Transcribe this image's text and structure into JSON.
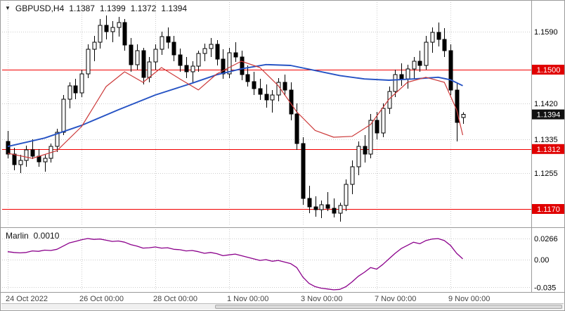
{
  "header": {
    "symbol": "GBPUSD,H4",
    "open": "1.1387",
    "high": "1.1399",
    "low": "1.1372",
    "close": "1.1394"
  },
  "indicator_header": {
    "name": "Marlin",
    "value": "0.0010"
  },
  "colors": {
    "bg": "#ffffff",
    "grid": "#cccccc",
    "candle": "#000000",
    "bull_fill": "#ffffff",
    "bear_fill": "#000000",
    "ma_slow": "#2653c4",
    "ma_fast": "#cc3a3a",
    "level_line": "#f20000",
    "level_badge": "#e00000",
    "price_badge": "#111111",
    "marlin": "#8b008b",
    "date_text": "#444444",
    "separator": "#9a9a9a"
  },
  "chart_data": {
    "type": "candlestick",
    "symbol": "GBPUSD",
    "timeframe": "H4",
    "title": "GBPUSD,H4 1.1387 1.1399 1.1372 1.1394",
    "y_axis": {
      "range": [
        1.113,
        1.166
      ],
      "plain_labels": [
        {
          "price": 1.159,
          "text": "1.1590"
        },
        {
          "price": 1.142,
          "text": "1.1420"
        },
        {
          "price": 1.1335,
          "text": "1.1335"
        },
        {
          "price": 1.1255,
          "text": "1.1255"
        }
      ],
      "level_labels": [
        {
          "price": 1.15,
          "text": "1.1500"
        },
        {
          "price": 1.1312,
          "text": "1.1312"
        },
        {
          "price": 1.117,
          "text": "1.1170"
        }
      ],
      "price_label": {
        "price": 1.1394,
        "text": "1.1394"
      }
    },
    "levels": [
      1.15,
      1.1312,
      1.117
    ],
    "x_labels": [
      {
        "i": 0,
        "text": "24 Oct 2022"
      },
      {
        "i": 12,
        "text": "26 Oct 00:00"
      },
      {
        "i": 24,
        "text": "28 Oct 00:00"
      },
      {
        "i": 36,
        "text": "1 Nov 00:00"
      },
      {
        "i": 48,
        "text": "3 Nov 00:00"
      },
      {
        "i": 60,
        "text": "7 Nov 00:00"
      },
      {
        "i": 72,
        "text": "9 Nov 00:00"
      }
    ],
    "candles": [
      [
        1.133,
        1.1355,
        1.129,
        1.13
      ],
      [
        1.13,
        1.1315,
        1.1262,
        1.1275
      ],
      [
        1.1275,
        1.1298,
        1.1255,
        1.1285
      ],
      [
        1.1285,
        1.132,
        1.127,
        1.131
      ],
      [
        1.131,
        1.1335,
        1.1288,
        1.1295
      ],
      [
        1.1295,
        1.1312,
        1.127,
        1.1282
      ],
      [
        1.1282,
        1.13,
        1.1258,
        1.129
      ],
      [
        1.129,
        1.1325,
        1.128,
        1.1318
      ],
      [
        1.1318,
        1.136,
        1.1305,
        1.1352
      ],
      [
        1.1352,
        1.144,
        1.1345,
        1.143
      ],
      [
        1.143,
        1.147,
        1.1408,
        1.1462
      ],
      [
        1.1462,
        1.1478,
        1.143,
        1.1445
      ],
      [
        1.1445,
        1.15,
        1.1435,
        1.149
      ],
      [
        1.149,
        1.156,
        1.148,
        1.1548
      ],
      [
        1.1548,
        1.158,
        1.152,
        1.1565
      ],
      [
        1.1565,
        1.162,
        1.155,
        1.1605
      ],
      [
        1.1605,
        1.1628,
        1.1572,
        1.159
      ],
      [
        1.159,
        1.1615,
        1.1565,
        1.16
      ],
      [
        1.16,
        1.1625,
        1.1578,
        1.1612
      ],
      [
        1.1612,
        1.162,
        1.1545,
        1.1558
      ],
      [
        1.1558,
        1.1575,
        1.1495,
        1.1512
      ],
      [
        1.1512,
        1.156,
        1.15,
        1.1545
      ],
      [
        1.1545,
        1.1552,
        1.1465,
        1.1482
      ],
      [
        1.1482,
        1.153,
        1.147,
        1.1518
      ],
      [
        1.1518,
        1.156,
        1.15,
        1.1548
      ],
      [
        1.1548,
        1.159,
        1.1535,
        1.1578
      ],
      [
        1.1578,
        1.16,
        1.155,
        1.1565
      ],
      [
        1.1565,
        1.158,
        1.152,
        1.1535
      ],
      [
        1.1535,
        1.155,
        1.1495,
        1.151
      ],
      [
        1.151,
        1.153,
        1.148,
        1.1495
      ],
      [
        1.1495,
        1.152,
        1.147,
        1.1508
      ],
      [
        1.1508,
        1.1545,
        1.1495,
        1.1538
      ],
      [
        1.1538,
        1.1562,
        1.152,
        1.155
      ],
      [
        1.155,
        1.1575,
        1.153,
        1.156
      ],
      [
        1.156,
        1.157,
        1.151,
        1.1525
      ],
      [
        1.1525,
        1.1548,
        1.1478,
        1.149
      ],
      [
        1.149,
        1.1552,
        1.148,
        1.154
      ],
      [
        1.154,
        1.1565,
        1.1518,
        1.153
      ],
      [
        1.153,
        1.1545,
        1.1475,
        1.1488
      ],
      [
        1.1488,
        1.151,
        1.146,
        1.1472
      ],
      [
        1.1472,
        1.1495,
        1.144,
        1.1455
      ],
      [
        1.1455,
        1.1478,
        1.1428,
        1.1442
      ],
      [
        1.1442,
        1.1465,
        1.141,
        1.1428
      ],
      [
        1.1428,
        1.1452,
        1.1398,
        1.144
      ],
      [
        1.144,
        1.148,
        1.1425,
        1.147
      ],
      [
        1.147,
        1.1488,
        1.1438,
        1.1452
      ],
      [
        1.1452,
        1.147,
        1.138,
        1.1395
      ],
      [
        1.1395,
        1.142,
        1.131,
        1.1325
      ],
      [
        1.1325,
        1.134,
        1.118,
        1.1195
      ],
      [
        1.1195,
        1.1225,
        1.116,
        1.1175
      ],
      [
        1.1175,
        1.12,
        1.1152,
        1.1168
      ],
      [
        1.1168,
        1.119,
        1.1148,
        1.118
      ],
      [
        1.118,
        1.121,
        1.1165,
        1.1172
      ],
      [
        1.1172,
        1.1195,
        1.115,
        1.116
      ],
      [
        1.116,
        1.1185,
        1.114,
        1.1178
      ],
      [
        1.1178,
        1.124,
        1.1165,
        1.1228
      ],
      [
        1.1228,
        1.1285,
        1.1205,
        1.127
      ],
      [
        1.127,
        1.133,
        1.125,
        1.1318
      ],
      [
        1.1318,
        1.1345,
        1.128,
        1.13
      ],
      [
        1.13,
        1.1395,
        1.129,
        1.138
      ],
      [
        1.138,
        1.14,
        1.1335,
        1.135
      ],
      [
        1.135,
        1.142,
        1.134,
        1.1408
      ],
      [
        1.1408,
        1.146,
        1.1395,
        1.1448
      ],
      [
        1.1448,
        1.15,
        1.1435,
        1.1488
      ],
      [
        1.1488,
        1.1515,
        1.1462,
        1.1478
      ],
      [
        1.1478,
        1.1512,
        1.1455,
        1.1502
      ],
      [
        1.1502,
        1.153,
        1.1478,
        1.152
      ],
      [
        1.152,
        1.1545,
        1.1495,
        1.151
      ],
      [
        1.151,
        1.158,
        1.15,
        1.1565
      ],
      [
        1.1565,
        1.16,
        1.154,
        1.1588
      ],
      [
        1.1588,
        1.1612,
        1.1555,
        1.1572
      ],
      [
        1.1572,
        1.1598,
        1.153,
        1.1545
      ],
      [
        1.1545,
        1.156,
        1.144,
        1.1452
      ],
      [
        1.1452,
        1.1468,
        1.133,
        1.1375
      ],
      [
        1.1387,
        1.1399,
        1.1372,
        1.1394
      ]
    ],
    "ma_lines": [
      {
        "name": "ma-slow-line",
        "color_key": "ma_slow",
        "points": [
          [
            0,
            1.1318
          ],
          [
            6,
            1.1338
          ],
          [
            12,
            1.1368
          ],
          [
            18,
            1.1405
          ],
          [
            24,
            1.144
          ],
          [
            30,
            1.1468
          ],
          [
            34,
            1.1488
          ],
          [
            38,
            1.1502
          ],
          [
            42,
            1.1512
          ],
          [
            46,
            1.151
          ],
          [
            50,
            1.1498
          ],
          [
            54,
            1.1486
          ],
          [
            58,
            1.1478
          ],
          [
            62,
            1.1475
          ],
          [
            66,
            1.1478
          ],
          [
            70,
            1.1482
          ],
          [
            72,
            1.1476
          ],
          [
            74,
            1.1462
          ]
        ]
      },
      {
        "name": "ma-fast-line",
        "color_key": "ma_fast",
        "points": [
          [
            0,
            1.1302
          ],
          [
            4,
            1.129
          ],
          [
            8,
            1.1308
          ],
          [
            12,
            1.1365
          ],
          [
            16,
            1.146
          ],
          [
            19,
            1.1495
          ],
          [
            22,
            1.147
          ],
          [
            25,
            1.1505
          ],
          [
            28,
            1.1478
          ],
          [
            31,
            1.1452
          ],
          [
            34,
            1.149
          ],
          [
            38,
            1.152
          ],
          [
            41,
            1.1505
          ],
          [
            44,
            1.1462
          ],
          [
            47,
            1.14
          ],
          [
            50,
            1.1356
          ],
          [
            53,
            1.134
          ],
          [
            56,
            1.1342
          ],
          [
            59,
            1.137
          ],
          [
            62,
            1.143
          ],
          [
            65,
            1.147
          ],
          [
            68,
            1.1482
          ],
          [
            71,
            1.147
          ],
          [
            73,
            1.1405
          ],
          [
            74,
            1.1345
          ]
        ]
      }
    ],
    "marlin": {
      "values": [
        0.01,
        0.009,
        0.0085,
        0.009,
        0.011,
        0.0105,
        0.012,
        0.0115,
        0.013,
        0.017,
        0.021,
        0.023,
        0.025,
        0.0266,
        0.0255,
        0.026,
        0.0245,
        0.023,
        0.0235,
        0.022,
        0.019,
        0.017,
        0.0145,
        0.015,
        0.016,
        0.0145,
        0.015,
        0.013,
        0.0125,
        0.011,
        0.0115,
        0.01,
        0.008,
        0.009,
        0.0075,
        0.005,
        0.006,
        0.007,
        0.005,
        0.003,
        0.001,
        -0.001,
        0.0,
        -0.002,
        -0.001,
        -0.003,
        -0.005,
        -0.01,
        -0.022,
        -0.03,
        -0.034,
        -0.036,
        -0.037,
        -0.038,
        -0.0375,
        -0.034,
        -0.028,
        -0.021,
        -0.016,
        -0.01,
        -0.012,
        -0.006,
        0.001,
        0.008,
        0.014,
        0.018,
        0.022,
        0.02,
        0.024,
        0.026,
        0.0265,
        0.024,
        0.018,
        0.008,
        0.001
      ],
      "axis_labels": [
        {
          "v": 0.0266,
          "text": "0.0266"
        },
        {
          "v": 0,
          "text": "0.00"
        },
        {
          "v": -0.035,
          "text": "-0.035"
        }
      ]
    }
  }
}
